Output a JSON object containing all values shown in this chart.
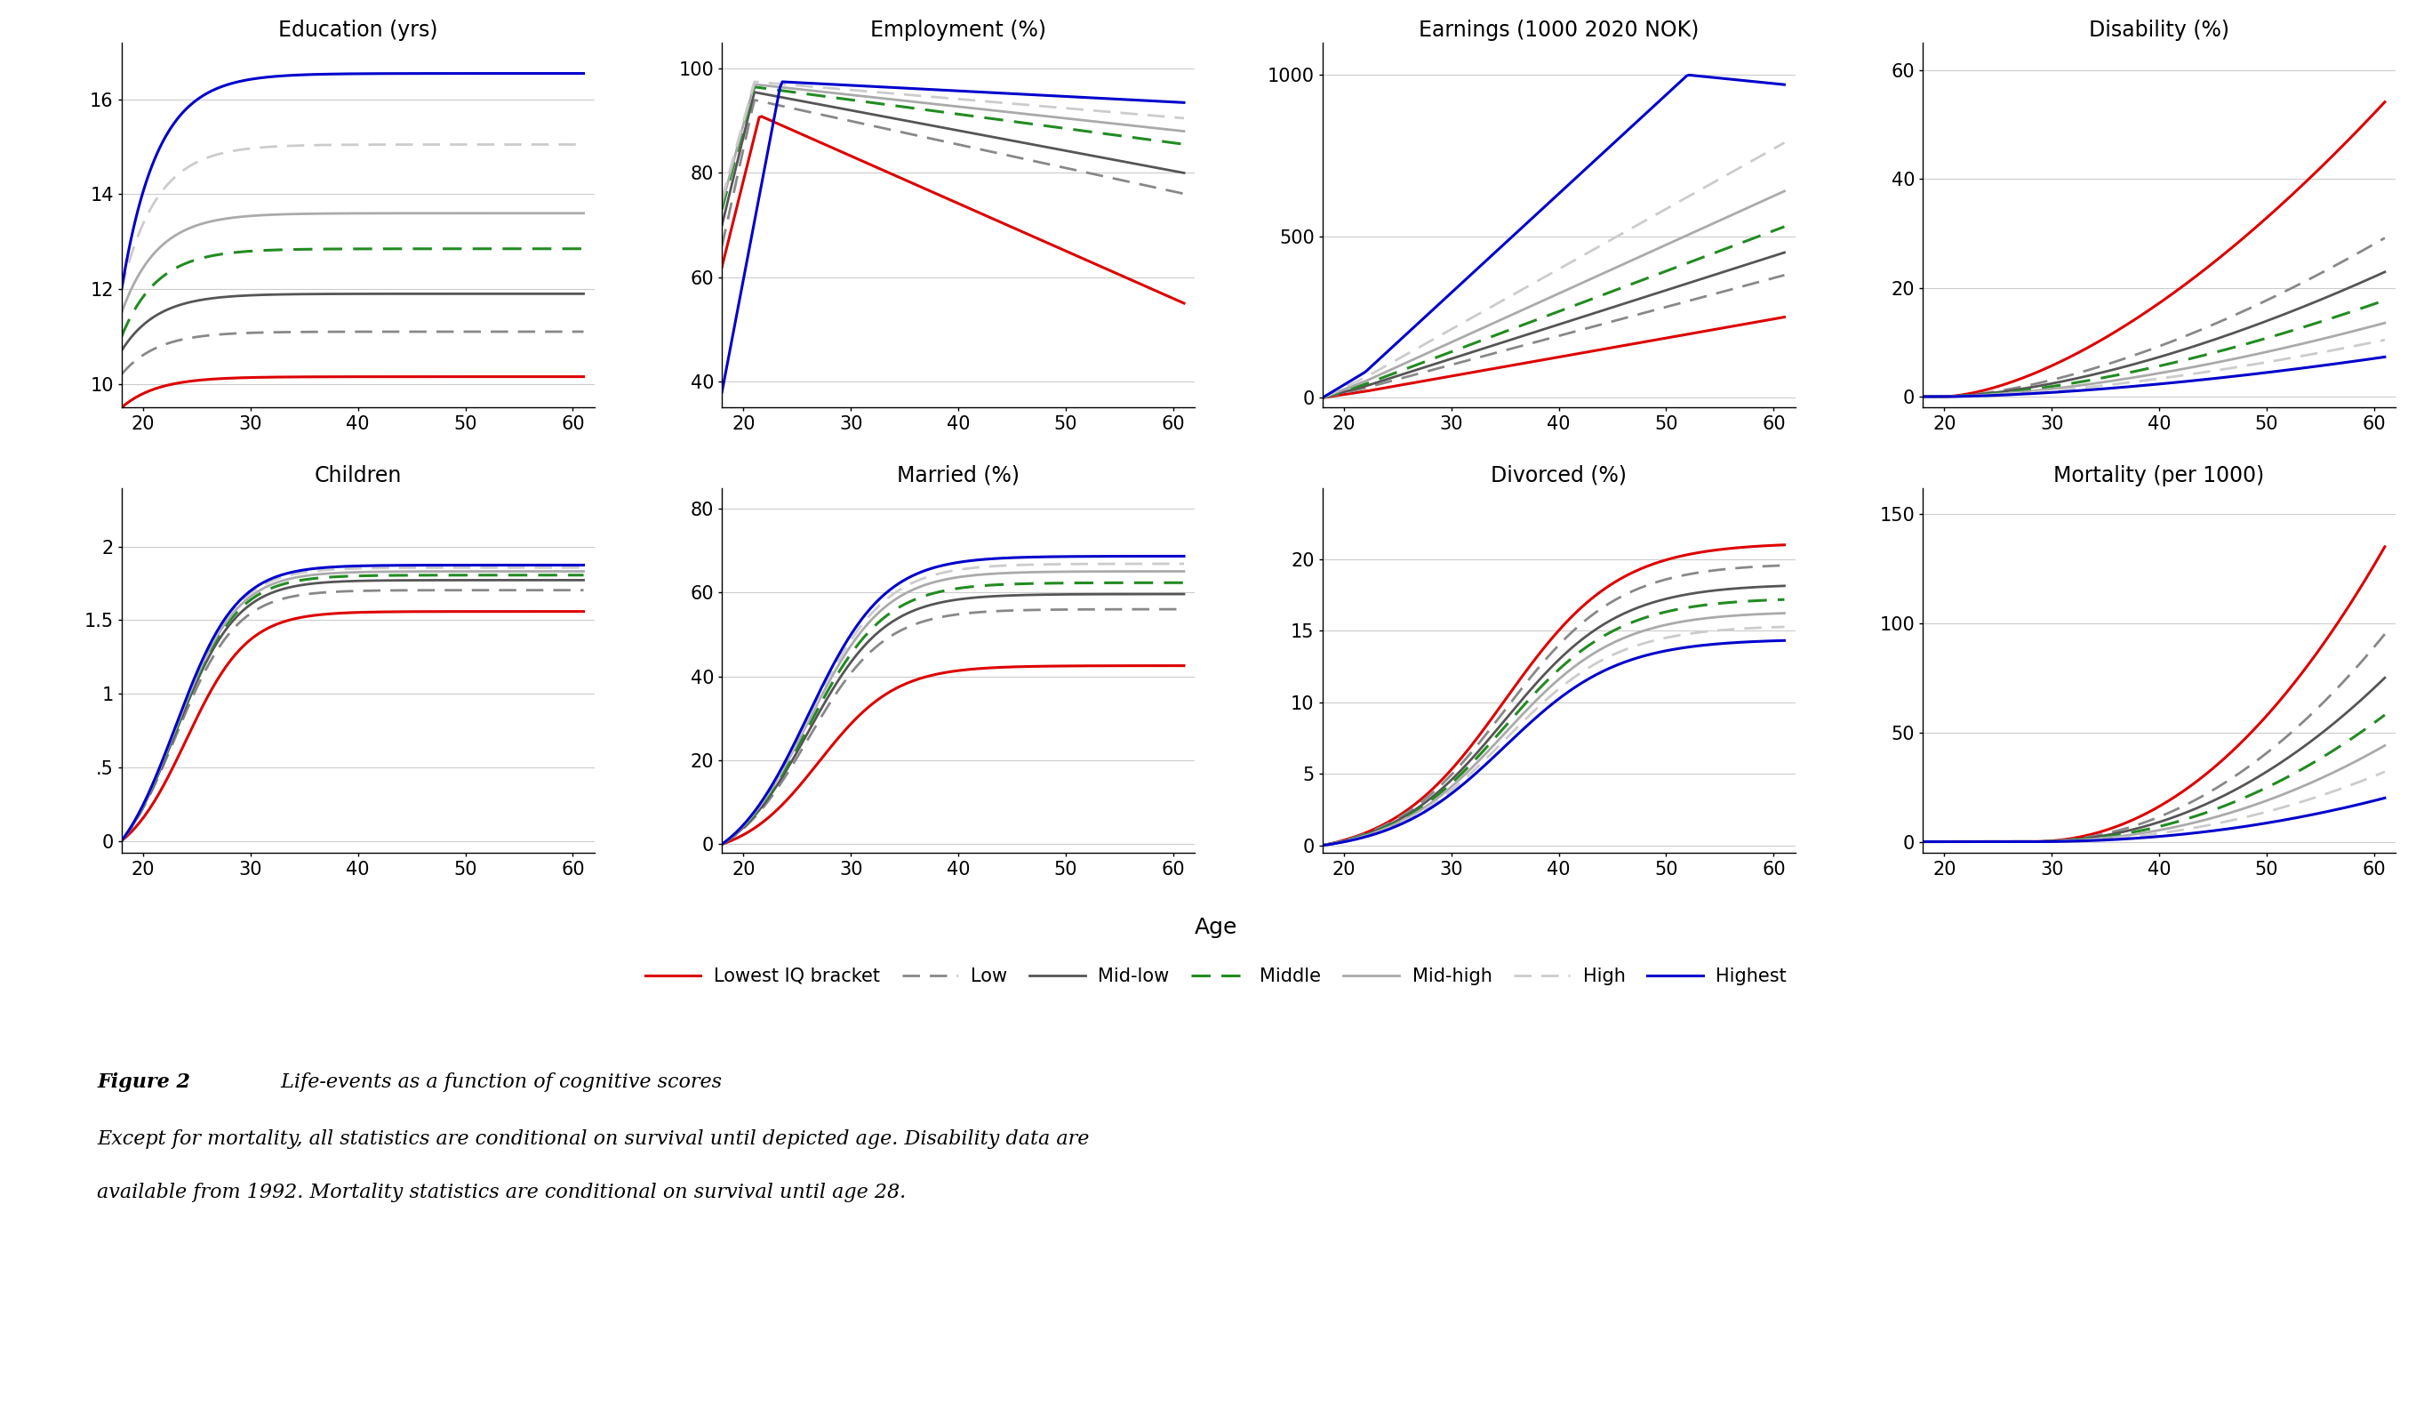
{
  "figure_size": [
    27.36,
    15.98
  ],
  "panels": [
    {
      "title": "Education (yrs)",
      "ylim": [
        9.5,
        17.2
      ],
      "yticks": [
        10,
        12,
        14,
        16
      ],
      "ytick_labels": [
        "10",
        "12",
        "14",
        "16"
      ],
      "xlim": [
        18,
        62
      ],
      "xticks": [
        20,
        30,
        40,
        50,
        60
      ],
      "row": 0,
      "col": 0
    },
    {
      "title": "Employment (%)",
      "ylim": [
        35,
        105
      ],
      "yticks": [
        40,
        60,
        80,
        100
      ],
      "ytick_labels": [
        "40",
        "60",
        "80",
        "100"
      ],
      "xlim": [
        18,
        62
      ],
      "xticks": [
        20,
        30,
        40,
        50,
        60
      ],
      "row": 0,
      "col": 1
    },
    {
      "title": "Earnings (1000 2020 NOK)",
      "ylim": [
        -30,
        1100
      ],
      "yticks": [
        0,
        500,
        1000
      ],
      "ytick_labels": [
        "0",
        "500",
        "1000"
      ],
      "xlim": [
        18,
        62
      ],
      "xticks": [
        20,
        30,
        40,
        50,
        60
      ],
      "row": 0,
      "col": 2
    },
    {
      "title": "Disability (%)",
      "ylim": [
        -2,
        65
      ],
      "yticks": [
        0,
        20,
        40,
        60
      ],
      "ytick_labels": [
        "0",
        "20",
        "40",
        "60"
      ],
      "xlim": [
        18,
        62
      ],
      "xticks": [
        20,
        30,
        40,
        50,
        60
      ],
      "row": 0,
      "col": 3
    },
    {
      "title": "Children",
      "ylim": [
        -0.08,
        2.4
      ],
      "yticks": [
        0,
        0.5,
        1,
        1.5,
        2
      ],
      "ytick_labels": [
        "0",
        ".5",
        "1",
        "1.5",
        "2"
      ],
      "xlim": [
        18,
        62
      ],
      "xticks": [
        20,
        30,
        40,
        50,
        60
      ],
      "row": 1,
      "col": 0
    },
    {
      "title": "Married (%)",
      "ylim": [
        -2,
        85
      ],
      "yticks": [
        0,
        20,
        40,
        60,
        80
      ],
      "ytick_labels": [
        "0",
        "20",
        "40",
        "60",
        "80"
      ],
      "xlim": [
        18,
        62
      ],
      "xticks": [
        20,
        30,
        40,
        50,
        60
      ],
      "row": 1,
      "col": 1
    },
    {
      "title": "Divorced (%)",
      "ylim": [
        -0.5,
        25
      ],
      "yticks": [
        0,
        5,
        10,
        15,
        20
      ],
      "ytick_labels": [
        "0",
        "5",
        "10",
        "15",
        "20"
      ],
      "xlim": [
        18,
        62
      ],
      "xticks": [
        20,
        30,
        40,
        50,
        60
      ],
      "row": 1,
      "col": 2
    },
    {
      "title": "Mortality (per 1000)",
      "ylim": [
        -5,
        162
      ],
      "yticks": [
        0,
        50,
        100,
        150
      ],
      "ytick_labels": [
        "0",
        "50",
        "100",
        "150"
      ],
      "xlim": [
        18,
        62
      ],
      "xticks": [
        20,
        30,
        40,
        50,
        60
      ],
      "row": 1,
      "col": 3
    }
  ],
  "groups": [
    {
      "name": "Lowest IQ bracket",
      "color": "#dd0000",
      "linestyle": "solid",
      "linewidth": 2.2
    },
    {
      "name": "Low",
      "color": "#888888",
      "linestyle": "dashed",
      "linewidth": 2.0
    },
    {
      "name": "Mid-low",
      "color": "#555555",
      "linestyle": "solid",
      "linewidth": 2.0
    },
    {
      "name": "Middle",
      "color": "#228B22",
      "linestyle": "dashed",
      "linewidth": 2.2
    },
    {
      "name": "Mid-high",
      "color": "#aaaaaa",
      "linestyle": "solid",
      "linewidth": 2.0
    },
    {
      "name": "High",
      "color": "#cccccc",
      "linestyle": "dashed",
      "linewidth": 2.0
    },
    {
      "name": "Highest",
      "color": "#0000cc",
      "linestyle": "solid",
      "linewidth": 2.2
    }
  ],
  "xlabel": "Age",
  "caption_bold": "Figure 2",
  "caption_rest": " Life-events as a function of cognitive scores",
  "caption_line2": "Except for mortality, all statistics are conditional on survival until depicted age. Disability data are",
  "caption_line3": "available from 1992. Mortality statistics are conditional on survival until age 28."
}
